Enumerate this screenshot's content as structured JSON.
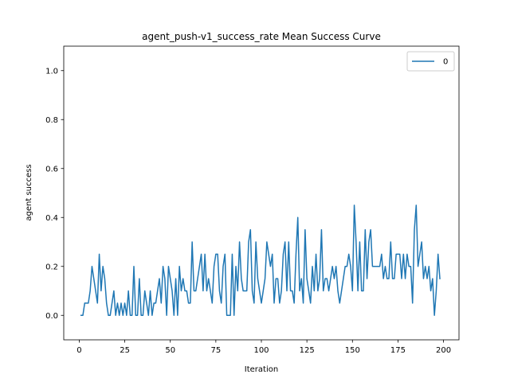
{
  "chart_data": {
    "type": "line",
    "title": "agent_push-v1_success_rate Mean Success Curve",
    "xlabel": "Iteration",
    "ylabel": "agent success",
    "xlim": [
      -8.5,
      208.5
    ],
    "ylim": [
      -0.1,
      1.1
    ],
    "xticks": [
      0,
      25,
      50,
      75,
      100,
      125,
      150,
      175,
      200
    ],
    "yticks": [
      0.0,
      0.2,
      0.4,
      0.6,
      0.8,
      1.0
    ],
    "xtick_labels": [
      "0",
      "25",
      "50",
      "75",
      "100",
      "125",
      "150",
      "175",
      "200"
    ],
    "ytick_labels": [
      "0.0",
      "0.2",
      "0.4",
      "0.6",
      "0.8",
      "1.0"
    ],
    "grid": false,
    "legend_position": "top-right",
    "series": [
      {
        "name": "0",
        "color": "#1f77b4",
        "x_start": 1,
        "x_step": 1,
        "values": [
          0,
          0,
          0.05,
          0.05,
          0.05,
          0.1,
          0.2,
          0.15,
          0.1,
          0.05,
          0.25,
          0.1,
          0.2,
          0.15,
          0.05,
          0,
          0,
          0.05,
          0.1,
          0,
          0.05,
          0,
          0.05,
          0,
          0.05,
          0,
          0.1,
          0,
          0,
          0.2,
          0,
          0,
          0.15,
          0,
          0,
          0.1,
          0.05,
          0,
          0.1,
          0,
          0.05,
          0.05,
          0.1,
          0.15,
          0.05,
          0.2,
          0.15,
          0,
          0.2,
          0.15,
          0.1,
          0,
          0.15,
          0,
          0.2,
          0.1,
          0.15,
          0.1,
          0.1,
          0.05,
          0.05,
          0.3,
          0.1,
          0.1,
          0.15,
          0.2,
          0.25,
          0.1,
          0.25,
          0.1,
          0.15,
          0.1,
          0.05,
          0.2,
          0.25,
          0.25,
          0.1,
          0.05,
          0.2,
          0.25,
          0,
          0,
          0,
          0.25,
          0,
          0.2,
          0.1,
          0.3,
          0.15,
          0.1,
          0.1,
          0.1,
          0.3,
          0.35,
          0.1,
          0.05,
          0.3,
          0.15,
          0.1,
          0.05,
          0.1,
          0.15,
          0.3,
          0.25,
          0.2,
          0.25,
          0.05,
          0.15,
          0.15,
          0.05,
          0.1,
          0.25,
          0.3,
          0.1,
          0.3,
          0.1,
          0.1,
          0.05,
          0.25,
          0.4,
          0.1,
          0.15,
          0.05,
          0.35,
          0.15,
          0.1,
          0.05,
          0.2,
          0.1,
          0.25,
          0.1,
          0.15,
          0.35,
          0.1,
          0.15,
          0.15,
          0.1,
          0.15,
          0.2,
          0.15,
          0.2,
          0.1,
          0.05,
          0.1,
          0.15,
          0.2,
          0.2,
          0.25,
          0.2,
          0.1,
          0.45,
          0.3,
          0.1,
          0.3,
          0.1,
          0.1,
          0.35,
          0.15,
          0.3,
          0.35,
          0.2,
          0.2,
          0.2,
          0.2,
          0.2,
          0.25,
          0.15,
          0.2,
          0.15,
          0.15,
          0.3,
          0.15,
          0.15,
          0.25,
          0.25,
          0.25,
          0.15,
          0.25,
          0.15,
          0.25,
          0.2,
          0.2,
          0.05,
          0.35,
          0.45,
          0.2,
          0.25,
          0.3,
          0.15,
          0.2,
          0.15,
          0.2,
          0.1,
          0.15,
          0,
          0.1,
          0.25,
          0.15
        ]
      }
    ]
  }
}
